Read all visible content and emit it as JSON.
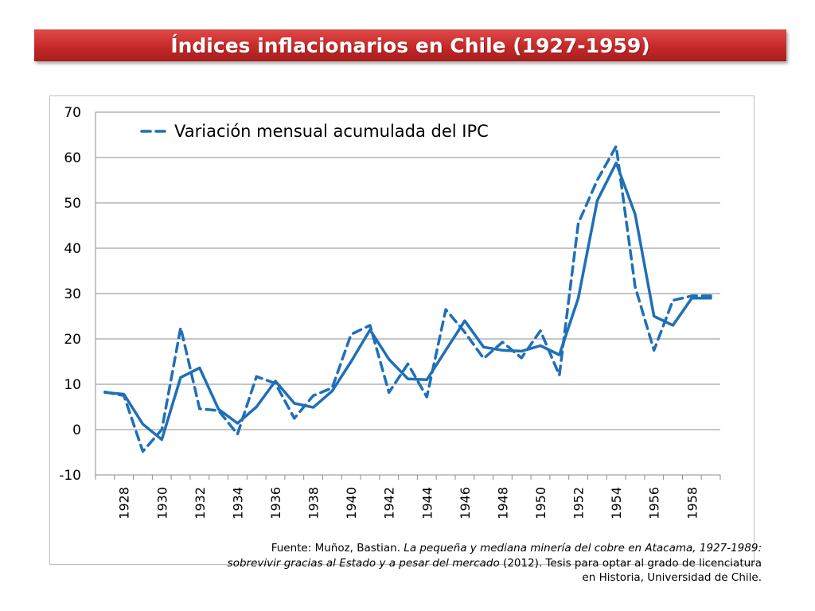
{
  "title": "Índices inflacionarios en Chile (1927-1959)",
  "chart_data": {
    "type": "line",
    "title": "",
    "xlabel": "",
    "ylabel": "",
    "ylim": [
      -10,
      70
    ],
    "yticks": [
      -10,
      0,
      10,
      20,
      30,
      40,
      50,
      60,
      70
    ],
    "x": [
      1927,
      1928,
      1929,
      1930,
      1931,
      1932,
      1933,
      1934,
      1935,
      1936,
      1937,
      1938,
      1939,
      1940,
      1941,
      1942,
      1943,
      1944,
      1945,
      1946,
      1947,
      1948,
      1949,
      1950,
      1951,
      1952,
      1953,
      1954,
      1955,
      1956,
      1957,
      1958,
      1959
    ],
    "xtick_labels": [
      "1928",
      "1930",
      "1932",
      "1934",
      "1936",
      "1938",
      "1940",
      "1942",
      "1944",
      "1946",
      "1948",
      "1950",
      "1952",
      "1954",
      "1956",
      "1958"
    ],
    "grid": true,
    "legend_position": "top-left",
    "series": [
      {
        "name": "",
        "style": "solid",
        "color": "#1f6fb8",
        "values": [
          8.2,
          7.8,
          1.2,
          -2.2,
          11.5,
          13.6,
          4.5,
          1.4,
          5.0,
          10.7,
          5.8,
          4.9,
          8.5,
          15.0,
          22.0,
          15.5,
          11.2,
          11.0,
          17.5,
          24.0,
          18.2,
          17.5,
          17.3,
          18.5,
          16.5,
          29.0,
          50.5,
          58.8,
          47.5,
          25.0,
          23.0,
          29.0,
          29.0
        ]
      },
      {
        "name": "Variación mensual acumulada del IPC",
        "style": "dashed",
        "color": "#1f6fb8",
        "values": [
          8.3,
          7.5,
          -4.8,
          0.0,
          22.5,
          4.6,
          4.2,
          -1.0,
          11.7,
          10.2,
          2.5,
          7.5,
          9.2,
          21.0,
          23.0,
          8.2,
          14.5,
          7.2,
          26.5,
          21.5,
          15.7,
          19.3,
          15.8,
          21.8,
          12.0,
          45.5,
          55.0,
          62.5,
          31.5,
          17.5,
          28.5,
          29.5,
          29.5
        ]
      }
    ]
  },
  "source": {
    "prefix": "Fuente: Muñoz, Bastian. ",
    "italic": "La pequeña y mediana minería del cobre en Atacama, 1927-1989: sobrevivir gracias al Estado y a pesar del mercado",
    "suffix": " (2012). Tesis para optar al grado de licenciatura en Historia, Universidad de Chile."
  }
}
